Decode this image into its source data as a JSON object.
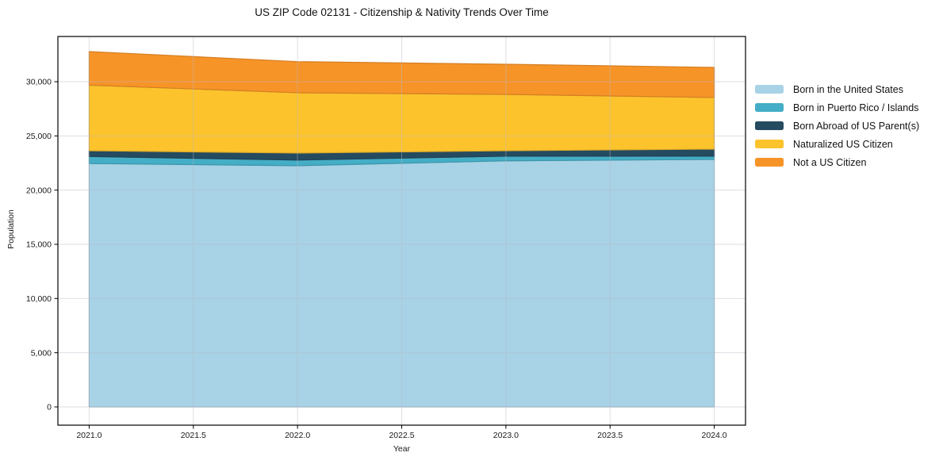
{
  "chart_data": {
    "type": "area",
    "stacked": true,
    "title": "US ZIP Code 02131 - Citizenship & Nativity Trends Over Time",
    "xlabel": "Year",
    "ylabel": "Population",
    "x": [
      2021,
      2022,
      2023,
      2024
    ],
    "series": [
      {
        "name": "Born in the United States",
        "color": "#a8d2e6",
        "values": [
          22450,
          22250,
          22700,
          22830
        ]
      },
      {
        "name": "Born in Puerto Rico / Islands",
        "color": "#44aec6",
        "values": [
          650,
          520,
          430,
          300
        ]
      },
      {
        "name": "Born Abroad of US Parent(s)",
        "color": "#254b60",
        "values": [
          530,
          650,
          500,
          650
        ]
      },
      {
        "name": "Naturalized US Citizen",
        "color": "#fcc32d",
        "values": [
          6050,
          5560,
          5200,
          4760
        ]
      },
      {
        "name": "Not a US Citizen",
        "color": "#f79428",
        "values": [
          3100,
          2870,
          2780,
          2780
        ]
      }
    ],
    "xticks": {
      "values": [
        2021.0,
        2021.5,
        2022.0,
        2022.5,
        2023.0,
        2023.5,
        2024.0
      ],
      "labels": [
        "2021.0",
        "2021.5",
        "2022.0",
        "2022.5",
        "2023.0",
        "2023.5",
        "2024.0"
      ]
    },
    "yticks": {
      "values": [
        0,
        5000,
        10000,
        15000,
        20000,
        25000,
        30000
      ],
      "labels": [
        "0",
        "5,000",
        "10,000",
        "15,000",
        "20,000",
        "25,000",
        "30,000"
      ]
    },
    "xlim": [
      2020.85,
      2024.15
    ],
    "ylim": [
      -1683,
      34170
    ],
    "grid": true,
    "legend_position": "right"
  }
}
